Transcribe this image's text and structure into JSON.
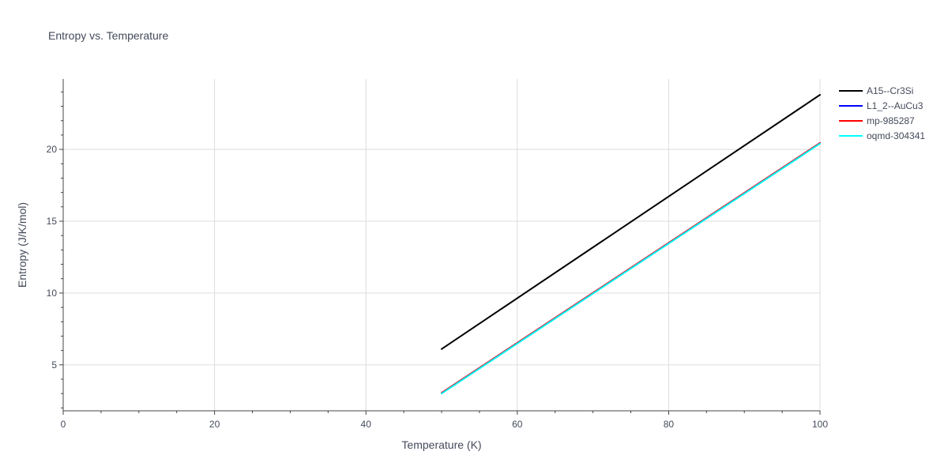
{
  "chart_data": {
    "type": "line",
    "title": "Entropy vs. Temperature",
    "xlabel": "Temperature (K)",
    "ylabel": "Entropy (J/K/mol)",
    "xlim": [
      0,
      100
    ],
    "ylim": [
      1.8,
      24.9
    ],
    "xticks": [
      0,
      20,
      40,
      60,
      80,
      100
    ],
    "yticks": [
      5,
      10,
      15,
      20
    ],
    "grid": true,
    "legend_position": "top-right",
    "series": [
      {
        "name": "A15--Cr3Si",
        "color": "#000000",
        "x": [
          50,
          100
        ],
        "y": [
          6.1,
          23.8
        ]
      },
      {
        "name": "L1_2--AuCu3",
        "color": "#0000ff",
        "x": [
          50,
          100
        ],
        "y": [
          3.05,
          20.45
        ]
      },
      {
        "name": "mp-985287",
        "color": "#ff0000",
        "x": [
          50,
          100
        ],
        "y": [
          3.05,
          20.45
        ]
      },
      {
        "name": "oqmd-304341",
        "color": "#00ffff",
        "x": [
          50,
          100
        ],
        "y": [
          3.0,
          20.4
        ]
      }
    ]
  }
}
